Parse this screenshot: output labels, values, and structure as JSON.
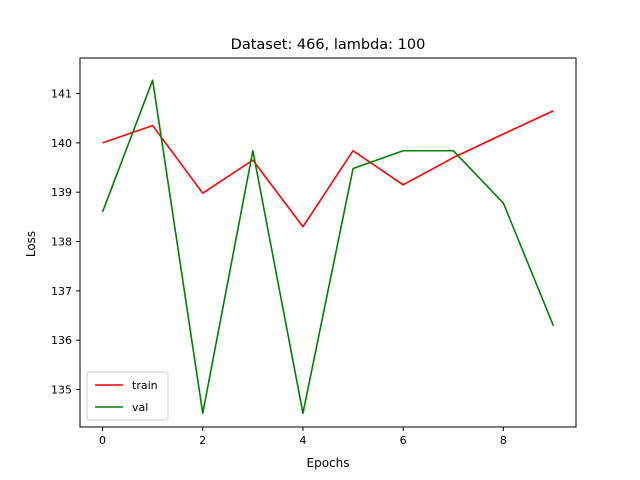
{
  "chart_data": {
    "type": "line",
    "title": "Dataset: 466, lambda: 100",
    "xlabel": "Epochs",
    "ylabel": "Loss",
    "xlim": [
      -0.45,
      9.45
    ],
    "ylim": [
      134.24,
      141.72
    ],
    "x_ticks": [
      0,
      2,
      4,
      6,
      8
    ],
    "y_ticks": [
      135,
      136,
      137,
      138,
      139,
      140,
      141
    ],
    "grid": false,
    "legend_position": "lower-left",
    "x": [
      0,
      1,
      2,
      3,
      4,
      5,
      6,
      7,
      8,
      9
    ],
    "series": [
      {
        "name": "train",
        "color": "#ff0000",
        "values": [
          140.0,
          140.35,
          138.98,
          139.65,
          138.3,
          139.84,
          139.15,
          139.7,
          140.18,
          140.65
        ]
      },
      {
        "name": "val",
        "color": "#008000",
        "values": [
          138.6,
          141.27,
          134.52,
          139.84,
          134.52,
          139.48,
          139.84,
          139.84,
          138.78,
          136.29
        ]
      }
    ]
  }
}
